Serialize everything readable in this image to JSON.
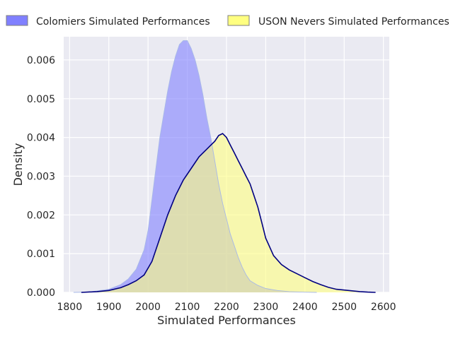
{
  "chart_data": {
    "type": "area",
    "title": "",
    "xlabel": "Simulated Performances",
    "ylabel": "Density",
    "xlim": [
      1785,
      2615
    ],
    "ylim": [
      0,
      0.0066
    ],
    "xticks": [
      1800,
      1900,
      2000,
      2100,
      2200,
      2300,
      2400,
      2500,
      2600
    ],
    "yticks": [
      0.0,
      0.001,
      0.002,
      0.003,
      0.004,
      0.005,
      0.006
    ],
    "ytick_labels": [
      "0.000",
      "0.001",
      "0.002",
      "0.003",
      "0.004",
      "0.005",
      "0.006"
    ],
    "grid": true,
    "legend_position": "top",
    "series": [
      {
        "name": "Colomiers Simulated Performances",
        "fill_color": "#8080ff",
        "line_color": "#a7b8e8",
        "x": [
          1810,
          1850,
          1900,
          1930,
          1950,
          1970,
          1990,
          2000,
          2010,
          2020,
          2030,
          2040,
          2050,
          2060,
          2070,
          2080,
          2090,
          2100,
          2110,
          2120,
          2130,
          2140,
          2150,
          2160,
          2170,
          2180,
          2190,
          2200,
          2210,
          2220,
          2230,
          2240,
          2250,
          2260,
          2280,
          2300,
          2330,
          2360,
          2400,
          2430
        ],
        "y": [
          0.0,
          1e-05,
          8e-05,
          0.0002,
          0.00035,
          0.0006,
          0.0011,
          0.0016,
          0.0024,
          0.0032,
          0.004,
          0.0046,
          0.0052,
          0.0057,
          0.0061,
          0.0064,
          0.0065,
          0.0065,
          0.0063,
          0.006,
          0.0056,
          0.0051,
          0.0045,
          0.004,
          0.0034,
          0.0028,
          0.0023,
          0.0019,
          0.0015,
          0.0012,
          0.0009,
          0.00065,
          0.00045,
          0.0003,
          0.00018,
          0.0001,
          5e-05,
          2e-05,
          5e-06,
          0.0
        ]
      },
      {
        "name": "USON Nevers Simulated Performances",
        "fill_color": "#ffff80",
        "line_color": "#000080",
        "x": [
          1830,
          1870,
          1900,
          1930,
          1950,
          1970,
          1990,
          2010,
          2030,
          2050,
          2070,
          2090,
          2110,
          2130,
          2150,
          2160,
          2170,
          2180,
          2190,
          2200,
          2210,
          2220,
          2230,
          2240,
          2250,
          2260,
          2270,
          2280,
          2290,
          2300,
          2320,
          2340,
          2360,
          2380,
          2400,
          2420,
          2440,
          2460,
          2480,
          2500,
          2520,
          2540,
          2560,
          2580
        ],
        "y": [
          0.0,
          2e-05,
          5e-05,
          0.00012,
          0.0002,
          0.0003,
          0.00045,
          0.0008,
          0.0014,
          0.002,
          0.0025,
          0.0029,
          0.0032,
          0.0035,
          0.0037,
          0.0038,
          0.0039,
          0.00405,
          0.0041,
          0.004,
          0.0038,
          0.0036,
          0.0034,
          0.0032,
          0.003,
          0.0028,
          0.0025,
          0.0022,
          0.0018,
          0.0014,
          0.00095,
          0.00072,
          0.00058,
          0.00048,
          0.00038,
          0.00028,
          0.0002,
          0.00013,
          8e-05,
          6e-05,
          4e-05,
          2e-05,
          8e-06,
          0.0
        ]
      }
    ]
  }
}
